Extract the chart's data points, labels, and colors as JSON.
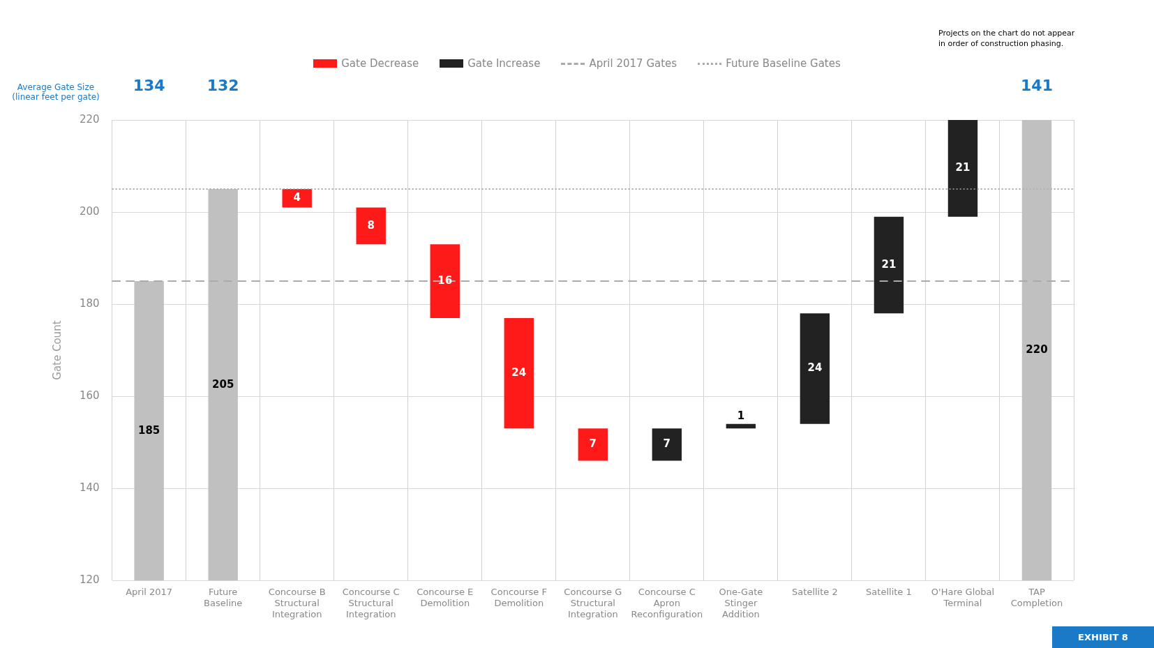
{
  "chart_data": {
    "type": "bar",
    "ylabel": "Gate Count",
    "categories": [
      "April 2017",
      "Future Baseline",
      "Concourse B Structural Integration",
      "Concourse C Structural Integration",
      "Concourse E Demolition",
      "Concourse F Demolition",
      "Concourse G Structural Integration",
      "Concourse C Apron Reconfiguration",
      "One-Gate Stinger Addition",
      "Satellite 2",
      "Satellite 1",
      "O'Hare Global Terminal",
      "TAP Completion"
    ],
    "series": [
      {
        "name": "Gate Decrease",
        "color": "#ff1a1a",
        "values": [
          null,
          null,
          4,
          8,
          16,
          24,
          7,
          null,
          null,
          null,
          null,
          null,
          null
        ],
        "base": [
          null,
          null,
          201,
          193,
          177,
          153,
          146,
          null,
          null,
          null,
          null,
          null,
          null
        ],
        "value_labels": [
          null,
          null,
          "4",
          "8",
          "16",
          "24",
          "7",
          null,
          null,
          null,
          null,
          null,
          null
        ]
      },
      {
        "name": "Gate Increase",
        "color": "#222222",
        "values": [
          null,
          null,
          null,
          null,
          null,
          null,
          null,
          7,
          1,
          24,
          21,
          21,
          null
        ],
        "base": [
          null,
          null,
          null,
          null,
          null,
          null,
          null,
          146,
          153,
          154,
          178,
          199,
          null
        ],
        "value_labels": [
          null,
          null,
          null,
          null,
          null,
          null,
          null,
          "7",
          "1",
          "24",
          "21",
          "21",
          null
        ]
      },
      {
        "color": "#c0c0c0",
        "values": [
          65,
          85,
          null,
          null,
          null,
          null,
          null,
          null,
          null,
          null,
          null,
          null,
          100
        ],
        "base": [
          120,
          120,
          null,
          null,
          null,
          null,
          null,
          null,
          null,
          null,
          null,
          null,
          120
        ],
        "value_labels": [
          "185",
          "205",
          null,
          null,
          null,
          null,
          null,
          null,
          null,
          null,
          null,
          null,
          "220"
        ]
      }
    ],
    "ylim": [
      120,
      220
    ],
    "yticks": [
      120,
      140,
      160,
      180,
      200,
      220
    ],
    "grid": true,
    "legend": "top",
    "ref_lines": [
      {
        "axis": "y",
        "value": 185,
        "label": "April 2017 Gates",
        "line_style": "dashed",
        "color": "#aaaaaa"
      },
      {
        "axis": "y",
        "value": 205,
        "label": "Future Baseline Gates",
        "line_style": "dotted",
        "color": "#aaaaaa"
      }
    ],
    "annotations": [
      "Average Gate Size (linear feet per gate)",
      "Projects on the chart do not appear in order of construction phasing.",
      "EXHIBIT 8",
      "134",
      "132",
      "141"
    ]
  }
}
